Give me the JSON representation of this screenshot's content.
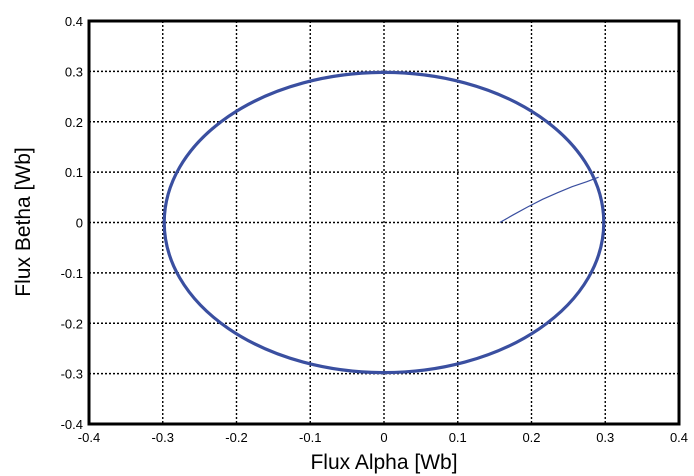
{
  "chart_data": {
    "type": "line",
    "xlabel": "Flux Alpha [Wb]",
    "ylabel": "Flux Betha [Wb]",
    "xlim": [
      -0.4,
      0.4
    ],
    "ylim": [
      -0.4,
      0.4
    ],
    "xticks": [
      -0.4,
      -0.3,
      -0.2,
      -0.1,
      0,
      0.1,
      0.2,
      0.3,
      0.4
    ],
    "yticks": [
      -0.4,
      -0.3,
      -0.2,
      -0.1,
      0,
      0.1,
      0.2,
      0.3,
      0.4
    ],
    "xtick_labels": [
      "-0.4",
      "-0.3",
      "-0.2",
      "-0.1",
      "0",
      "0.1",
      "0.2",
      "0.3",
      "0.4"
    ],
    "ytick_labels": [
      "-0.4",
      "-0.3",
      "-0.2",
      "-0.1",
      "0",
      "0.1",
      "0.2",
      "0.3",
      "0.4"
    ],
    "grid": true,
    "grid_style": "dotted",
    "line_color": "#3a4fa0",
    "series": [
      {
        "shape": "circle",
        "center": [
          0,
          0
        ],
        "radius": 0.298
      },
      {
        "shape": "transient",
        "x": [
          0.157,
          0.175,
          0.195,
          0.215,
          0.235,
          0.255,
          0.275,
          0.291
        ],
        "y": [
          0.0,
          0.015,
          0.031,
          0.046,
          0.059,
          0.071,
          0.081,
          0.09
        ]
      }
    ]
  }
}
